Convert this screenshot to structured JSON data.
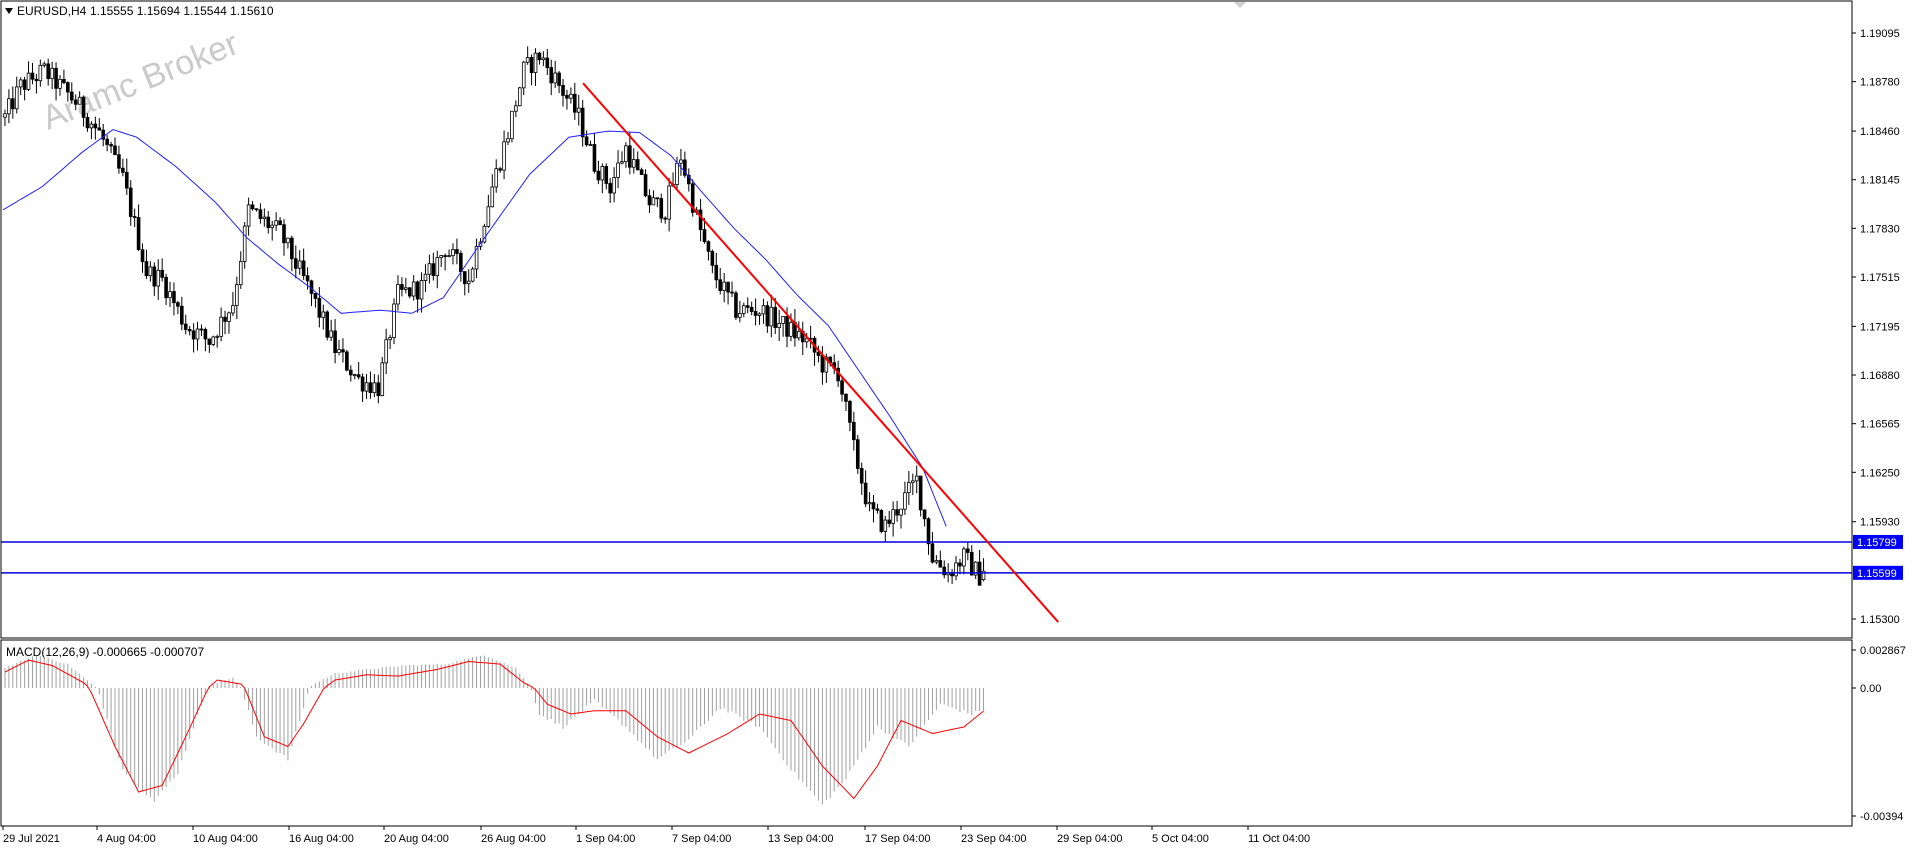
{
  "header": {
    "symbol_text": "EURUSD,H4",
    "ohlc_text": "1.15555 1.15694 1.15544 1.15610"
  },
  "watermark": {
    "text": "Aramc Broker"
  },
  "macd_header": {
    "text": "MACD(12,26,9) -0.000665 -0.000707"
  },
  "colors": {
    "background": "#ffffff",
    "candle": "#000000",
    "moving_average": "#1f1fff",
    "trendline": "#ff0000",
    "horizontal_level": "#0000dd",
    "level_label_bg": "#0000ff",
    "macd_histogram": "#a0a0a0",
    "macd_signal": "#ff0000",
    "axis_text": "#000000"
  },
  "chart_data": [
    {
      "type": "candlestick",
      "title": "EURUSD,H4",
      "y_ticks": [
        "1.19095",
        "1.18780",
        "1.18460",
        "1.18145",
        "1.17830",
        "1.17515",
        "1.17195",
        "1.16880",
        "1.16565",
        "1.16250",
        "1.15930",
        "1.15300"
      ],
      "ylim": [
        1.1528,
        1.1925
      ],
      "x_tick_labels": [
        "29 Jul 2021",
        "4 Aug 04:00",
        "10 Aug 04:00",
        "16 Aug 04:00",
        "20 Aug 04:00",
        "26 Aug 04:00",
        "1 Sep 04:00",
        "7 Sep 04:00",
        "13 Sep 04:00",
        "17 Sep 04:00",
        "23 Sep 04:00",
        "29 Sep 04:00",
        "5 Oct 04:00",
        "11 Oct 04:00"
      ],
      "bar_count": 250,
      "close_path": {
        "bar": [
          0,
          4,
          10,
          18,
          24,
          30,
          36,
          40,
          46,
          52,
          58,
          62,
          70,
          78,
          84,
          90,
          95,
          100,
          106,
          112,
          118,
          124,
          128,
          132,
          136,
          140,
          146,
          150,
          154,
          158,
          164,
          168,
          172,
          176,
          180,
          186,
          192,
          198,
          204,
          208,
          212,
          216,
          220,
          224,
          228,
          232,
          236,
          240,
          244,
          249
        ],
        "close": [
          1.1855,
          1.1875,
          1.1885,
          1.1865,
          1.1845,
          1.1815,
          1.1755,
          1.175,
          1.172,
          1.171,
          1.1735,
          1.1795,
          1.178,
          1.174,
          1.1705,
          1.1685,
          1.168,
          1.174,
          1.1745,
          1.177,
          1.175,
          1.181,
          1.1845,
          1.1885,
          1.1895,
          1.188,
          1.1855,
          1.1825,
          1.181,
          1.1835,
          1.18,
          1.1795,
          1.183,
          1.179,
          1.1755,
          1.173,
          1.173,
          1.172,
          1.171,
          1.1695,
          1.169,
          1.164,
          1.16,
          1.159,
          1.1605,
          1.162,
          1.157,
          1.156,
          1.157,
          1.1555
        ]
      },
      "last": {
        "open": 1.15555,
        "high": 1.15694,
        "low": 1.15544,
        "close": 1.1561
      },
      "moving_average": {
        "bar": [
          0,
          10,
          20,
          28,
          34,
          44,
          54,
          62,
          70,
          78,
          86,
          96,
          104,
          112,
          122,
          134,
          144,
          154,
          162,
          170,
          178,
          186,
          194,
          202,
          210,
          218,
          226,
          234,
          240
        ],
        "value": [
          1.1795,
          1.181,
          1.1832,
          1.1847,
          1.1842,
          1.1823,
          1.18,
          1.1777,
          1.176,
          1.1745,
          1.1728,
          1.173,
          1.1728,
          1.1738,
          1.1775,
          1.1818,
          1.1842,
          1.1846,
          1.1845,
          1.183,
          1.1806,
          1.1783,
          1.1763,
          1.174,
          1.172,
          1.169,
          1.166,
          1.1628,
          1.159
        ]
      },
      "trendline": {
        "start": {
          "bar": 147.6,
          "price": 1.1877
        },
        "end": {
          "bar": 268.5,
          "price": 1.1528
        }
      },
      "horizontal_levels": [
        {
          "price": 1.15799,
          "label": "1.15799"
        },
        {
          "price": 1.15599,
          "label": "1.15599"
        }
      ],
      "grid": false
    },
    {
      "type": "bar",
      "title": "MACD(12,26,9) -0.000665 -0.000707",
      "y_ticks": [
        "0.002867",
        "0.00",
        "-0.00394"
      ],
      "ylim": [
        -0.00394,
        0.002867
      ],
      "histogram_path": {
        "bar": [
          0,
          8,
          16,
          24,
          30,
          38,
          44,
          52,
          58,
          64,
          72,
          78,
          84,
          92,
          102,
          112,
          122,
          130,
          136,
          142,
          150,
          158,
          166,
          174,
          182,
          192,
          200,
          208,
          214,
          222,
          230,
          238,
          246,
          249
        ],
        "value": [
          0.0015,
          0.0025,
          0.0018,
          -0.0002,
          -0.0025,
          -0.0035,
          -0.0026,
          0.0002,
          0.0008,
          -0.0015,
          -0.0022,
          0.0002,
          0.0011,
          0.0014,
          0.0017,
          0.0018,
          0.0025,
          0.0015,
          -0.0008,
          -0.0012,
          -0.0004,
          -0.0012,
          -0.0022,
          -0.0016,
          -0.0006,
          -0.0012,
          -0.0025,
          -0.0036,
          -0.0028,
          -0.0012,
          -0.0018,
          -0.0005,
          -0.0008,
          -0.00067
        ]
      },
      "signal_path": {
        "bar": [
          0,
          6,
          12,
          20,
          28,
          34,
          40,
          46,
          54,
          60,
          66,
          72,
          76,
          84,
          92,
          100,
          110,
          118,
          126,
          132,
          138,
          144,
          150,
          158,
          166,
          174,
          184,
          192,
          200,
          208,
          216,
          222,
          228,
          236,
          244,
          249
        ],
        "value": [
          0.0012,
          0.0021,
          0.0017,
          0.0004,
          -0.0018,
          -0.0032,
          -0.003,
          -0.0015,
          0.0006,
          0.0003,
          -0.0015,
          -0.0018,
          -0.0011,
          0.0006,
          0.001,
          0.0009,
          0.0014,
          0.002,
          0.0018,
          0.0004,
          -0.0005,
          -0.0008,
          -0.0007,
          -0.0007,
          -0.0015,
          -0.002,
          -0.0014,
          -0.0008,
          -0.001,
          -0.0024,
          -0.0034,
          -0.0024,
          -0.001,
          -0.0014,
          -0.0012,
          -0.00071
        ]
      }
    }
  ]
}
